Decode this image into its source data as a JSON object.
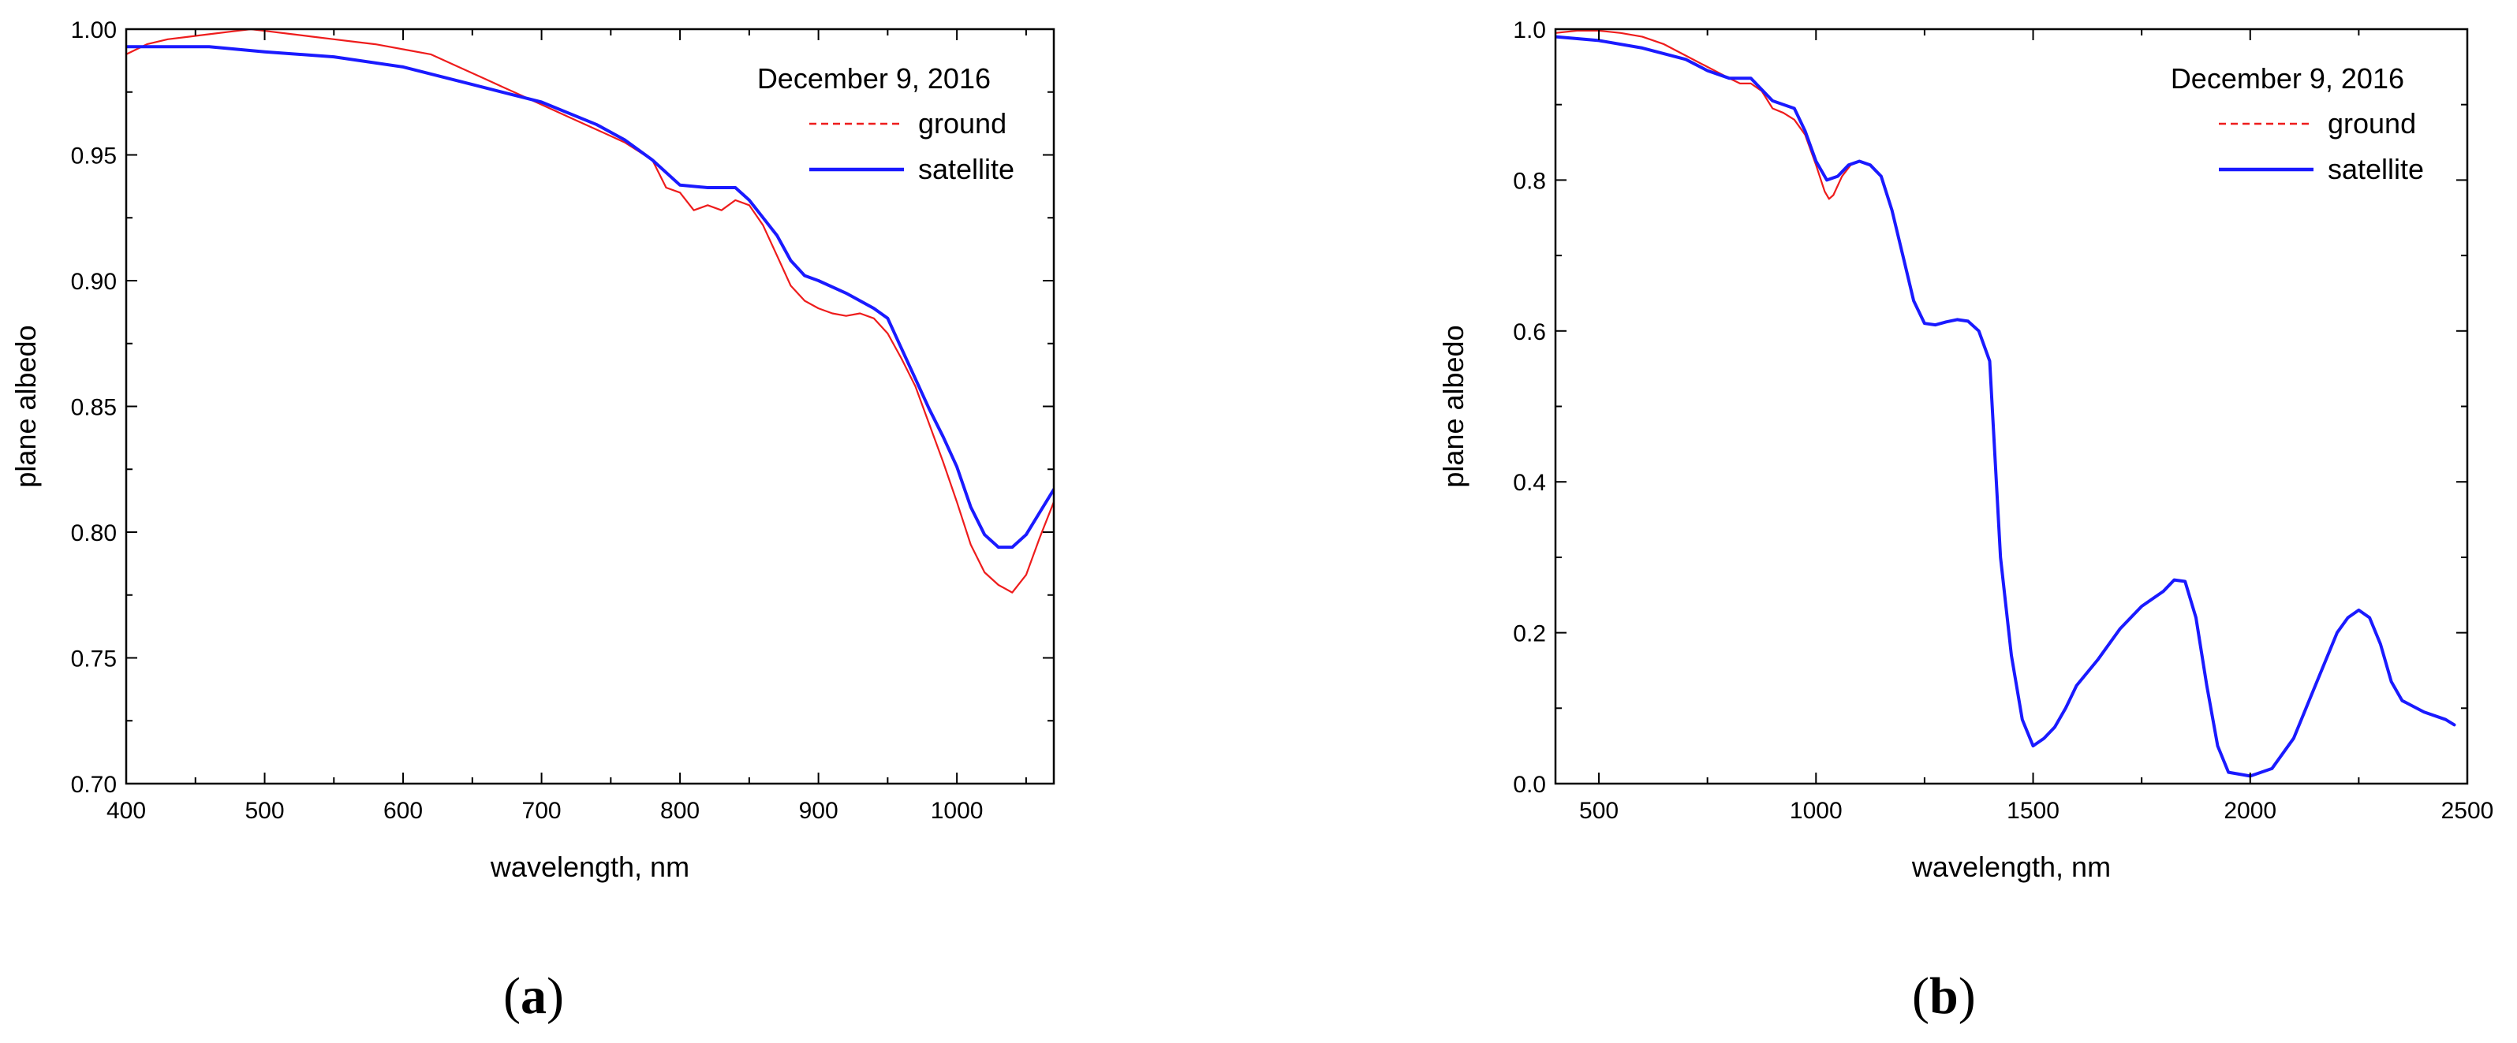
{
  "chart_data": [
    {
      "type": "line",
      "panel_label": "a",
      "title": "December 9, 2016",
      "xlabel": "wavelength, nm",
      "ylabel": "plane albedo",
      "xlim": [
        400,
        1070
      ],
      "ylim": [
        0.7,
        1.0
      ],
      "x_ticks": [
        400,
        500,
        600,
        700,
        800,
        900,
        1000
      ],
      "x_ticklabels": [
        "400",
        "500",
        "600",
        "700",
        "800",
        "900",
        "1000"
      ],
      "y_ticks": [
        0.7,
        0.75,
        0.8,
        0.85,
        0.9,
        0.95,
        1.0
      ],
      "y_ticklabels": [
        "0.70",
        "0.75",
        "0.80",
        "0.85",
        "0.90",
        "0.95",
        "1.00"
      ],
      "grid": false,
      "legend_position": "top-right",
      "series": [
        {
          "name": "ground",
          "color": "#ee1c1c",
          "style": "dashed",
          "x": [
            400,
            415,
            430,
            445,
            460,
            475,
            490,
            505,
            520,
            535,
            550,
            565,
            580,
            600,
            620,
            640,
            660,
            680,
            700,
            720,
            740,
            760,
            780,
            790,
            800,
            810,
            820,
            830,
            840,
            850,
            860,
            870,
            880,
            890,
            900,
            910,
            920,
            930,
            940,
            950,
            960,
            970,
            980,
            990,
            1000,
            1010,
            1020,
            1030,
            1040,
            1050,
            1060,
            1070
          ],
          "y": [
            0.99,
            0.994,
            0.996,
            0.997,
            0.998,
            0.999,
            1.0,
            0.999,
            0.998,
            0.997,
            0.996,
            0.995,
            0.994,
            0.992,
            0.99,
            0.985,
            0.98,
            0.975,
            0.97,
            0.965,
            0.96,
            0.955,
            0.948,
            0.937,
            0.935,
            0.928,
            0.93,
            0.928,
            0.932,
            0.93,
            0.922,
            0.91,
            0.898,
            0.892,
            0.889,
            0.887,
            0.886,
            0.887,
            0.885,
            0.879,
            0.869,
            0.858,
            0.843,
            0.828,
            0.812,
            0.795,
            0.784,
            0.779,
            0.776,
            0.783,
            0.798,
            0.812
          ]
        },
        {
          "name": "satellite",
          "color": "#1a1aff",
          "style": "solid",
          "x": [
            400,
            430,
            460,
            500,
            550,
            600,
            650,
            700,
            740,
            760,
            780,
            800,
            820,
            840,
            850,
            860,
            870,
            880,
            890,
            900,
            920,
            940,
            950,
            960,
            970,
            980,
            990,
            1000,
            1010,
            1020,
            1030,
            1040,
            1050,
            1060,
            1070
          ],
          "y": [
            0.993,
            0.993,
            0.993,
            0.991,
            0.989,
            0.985,
            0.978,
            0.971,
            0.962,
            0.956,
            0.948,
            0.938,
            0.937,
            0.937,
            0.932,
            0.925,
            0.918,
            0.908,
            0.902,
            0.9,
            0.895,
            0.889,
            0.885,
            0.873,
            0.861,
            0.849,
            0.838,
            0.826,
            0.81,
            0.799,
            0.794,
            0.794,
            0.799,
            0.808,
            0.817
          ]
        }
      ]
    },
    {
      "type": "line",
      "panel_label": "b",
      "title": "December 9, 2016",
      "xlabel": "wavelength, nm",
      "ylabel": "plane albedo",
      "xlim": [
        400,
        2500
      ],
      "ylim": [
        0.0,
        1.0
      ],
      "x_ticks": [
        500,
        1000,
        1500,
        2000,
        2500
      ],
      "x_ticklabels": [
        "500",
        "1000",
        "1500",
        "2000",
        "2500"
      ],
      "y_ticks": [
        0.0,
        0.2,
        0.4,
        0.6,
        0.8,
        1.0
      ],
      "y_ticklabels": [
        "0.0",
        "0.2",
        "0.4",
        "0.6",
        "0.8",
        "1.0"
      ],
      "grid": false,
      "legend_position": "top-right",
      "series": [
        {
          "name": "ground",
          "color": "#ee1c1c",
          "style": "dashed",
          "x": [
            400,
            450,
            500,
            550,
            600,
            650,
            700,
            750,
            800,
            825,
            850,
            875,
            900,
            925,
            950,
            975,
            1000,
            1020,
            1030,
            1040,
            1060,
            1080,
            1100
          ],
          "y": [
            0.995,
            0.998,
            0.998,
            0.995,
            0.99,
            0.98,
            0.965,
            0.95,
            0.935,
            0.928,
            0.928,
            0.918,
            0.895,
            0.889,
            0.88,
            0.86,
            0.82,
            0.785,
            0.775,
            0.78,
            0.805,
            0.82,
            0.825
          ]
        },
        {
          "name": "satellite",
          "color": "#1a1aff",
          "style": "solid",
          "x": [
            400,
            500,
            600,
            700,
            750,
            800,
            850,
            875,
            900,
            950,
            975,
            1000,
            1025,
            1050,
            1075,
            1100,
            1125,
            1150,
            1175,
            1200,
            1225,
            1250,
            1275,
            1300,
            1325,
            1350,
            1375,
            1400,
            1425,
            1450,
            1475,
            1500,
            1525,
            1550,
            1575,
            1600,
            1650,
            1700,
            1750,
            1800,
            1825,
            1850,
            1875,
            1900,
            1925,
            1950,
            2000,
            2050,
            2100,
            2150,
            2200,
            2225,
            2250,
            2275,
            2300,
            2325,
            2350,
            2400,
            2450,
            2470
          ],
          "y": [
            0.99,
            0.985,
            0.975,
            0.96,
            0.945,
            0.935,
            0.935,
            0.92,
            0.905,
            0.895,
            0.865,
            0.825,
            0.8,
            0.805,
            0.82,
            0.825,
            0.82,
            0.805,
            0.76,
            0.7,
            0.64,
            0.61,
            0.608,
            0.612,
            0.615,
            0.613,
            0.6,
            0.56,
            0.3,
            0.17,
            0.085,
            0.05,
            0.06,
            0.075,
            0.1,
            0.13,
            0.165,
            0.205,
            0.235,
            0.255,
            0.27,
            0.268,
            0.22,
            0.13,
            0.05,
            0.015,
            0.01,
            0.02,
            0.06,
            0.13,
            0.2,
            0.22,
            0.23,
            0.22,
            0.185,
            0.135,
            0.11,
            0.095,
            0.085,
            0.078
          ]
        }
      ]
    }
  ]
}
